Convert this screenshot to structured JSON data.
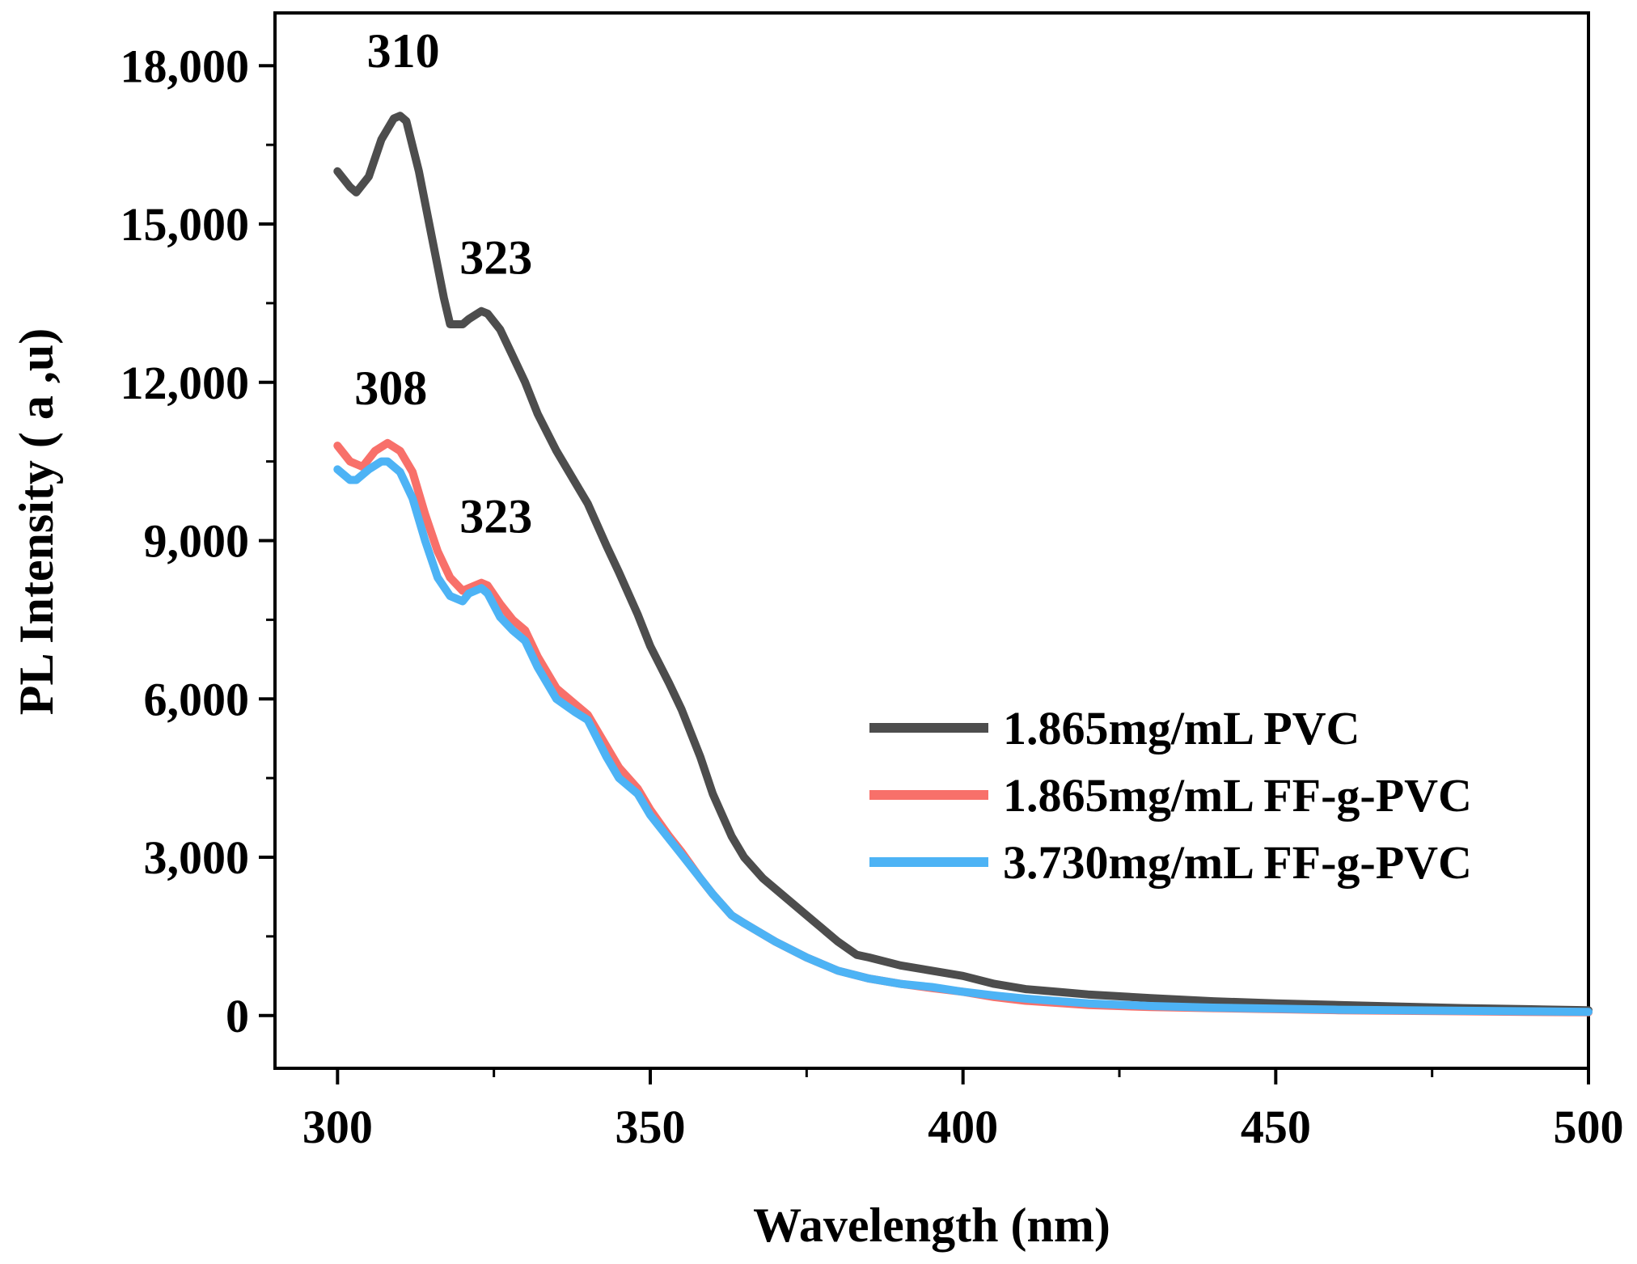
{
  "chart_data": {
    "type": "line",
    "title": "",
    "xlabel": "Wavelength (nm)",
    "ylabel": "PL Intensity ( a ,u)",
    "xlim": [
      290,
      500
    ],
    "ylim": [
      -1000,
      19000
    ],
    "xticks": [
      300,
      350,
      400,
      450,
      500
    ],
    "xtick_labels": [
      "300",
      "350",
      "400",
      "450",
      "500"
    ],
    "yticks": [
      0,
      3000,
      6000,
      9000,
      12000,
      15000,
      18000
    ],
    "ytick_labels": [
      "0",
      "3,000",
      "6,000",
      "9,000",
      "12,000",
      "15,000",
      "18,000"
    ],
    "grid": false,
    "legend_position": "center-right",
    "series": [
      {
        "name": "1.865mg/mL PVC",
        "color": "#4d4d4d",
        "x": [
          300,
          302,
          303,
          305,
          307,
          309,
          310,
          311,
          313,
          315,
          317,
          318,
          320,
          321,
          323,
          324,
          326,
          328,
          330,
          332,
          335,
          338,
          340,
          343,
          345,
          348,
          350,
          353,
          355,
          358,
          360,
          363,
          365,
          368,
          370,
          375,
          380,
          383,
          385,
          390,
          395,
          400,
          405,
          410,
          415,
          420,
          430,
          440,
          450,
          460,
          470,
          480,
          490,
          500
        ],
        "values": [
          16000,
          15700,
          15600,
          15900,
          16600,
          17000,
          17050,
          16950,
          16000,
          14800,
          13600,
          13100,
          13100,
          13200,
          13350,
          13300,
          13000,
          12500,
          12000,
          11400,
          10700,
          10100,
          9700,
          8900,
          8400,
          7600,
          7000,
          6300,
          5800,
          4900,
          4200,
          3400,
          3000,
          2600,
          2400,
          1900,
          1400,
          1150,
          1100,
          950,
          850,
          750,
          600,
          500,
          450,
          400,
          330,
          270,
          230,
          200,
          170,
          140,
          120,
          100
        ]
      },
      {
        "name": "1.865mg/mL FF-g-PVC",
        "color": "#f8706a",
        "x": [
          300,
          302,
          304,
          306,
          308,
          310,
          312,
          314,
          316,
          318,
          320,
          321,
          323,
          324,
          326,
          328,
          330,
          332,
          335,
          338,
          340,
          343,
          345,
          348,
          350,
          353,
          355,
          358,
          360,
          363,
          365,
          370,
          375,
          380,
          385,
          390,
          395,
          400,
          405,
          410,
          420,
          430,
          440,
          450,
          460,
          470,
          480,
          490,
          500
        ],
        "values": [
          10800,
          10500,
          10400,
          10700,
          10850,
          10700,
          10300,
          9500,
          8800,
          8300,
          8050,
          8100,
          8200,
          8150,
          7800,
          7500,
          7300,
          6800,
          6200,
          5900,
          5700,
          5100,
          4700,
          4300,
          3900,
          3400,
          3100,
          2600,
          2300,
          1900,
          1750,
          1400,
          1100,
          850,
          700,
          600,
          520,
          450,
          350,
          280,
          200,
          160,
          140,
          120,
          100,
          90,
          80,
          70,
          60
        ]
      },
      {
        "name": "3.730mg/mL FF-g-PVC",
        "color": "#4db3f5",
        "x": [
          300,
          302,
          303,
          305,
          307,
          308,
          310,
          312,
          314,
          316,
          318,
          320,
          321,
          323,
          324,
          326,
          328,
          330,
          332,
          335,
          338,
          340,
          343,
          345,
          348,
          350,
          353,
          355,
          358,
          360,
          363,
          365,
          370,
          375,
          380,
          385,
          390,
          395,
          400,
          405,
          410,
          420,
          430,
          440,
          450,
          460,
          470,
          480,
          490,
          500
        ],
        "values": [
          10350,
          10150,
          10150,
          10350,
          10500,
          10500,
          10300,
          9800,
          9000,
          8300,
          7950,
          7850,
          8000,
          8100,
          8000,
          7550,
          7300,
          7100,
          6600,
          6000,
          5750,
          5600,
          4900,
          4500,
          4200,
          3800,
          3350,
          3050,
          2600,
          2300,
          1900,
          1750,
          1400,
          1100,
          850,
          700,
          600,
          540,
          450,
          380,
          320,
          230,
          180,
          150,
          130,
          110,
          100,
          90,
          80,
          70
        ]
      }
    ],
    "annotations": [
      {
        "text": "310",
        "x": 310,
        "y": 17050
      },
      {
        "text": "323",
        "x": 323,
        "y": 13350
      },
      {
        "text": "308",
        "x": 308,
        "y": 10850
      },
      {
        "text": "323",
        "x": 323,
        "y": 8200
      }
    ]
  }
}
